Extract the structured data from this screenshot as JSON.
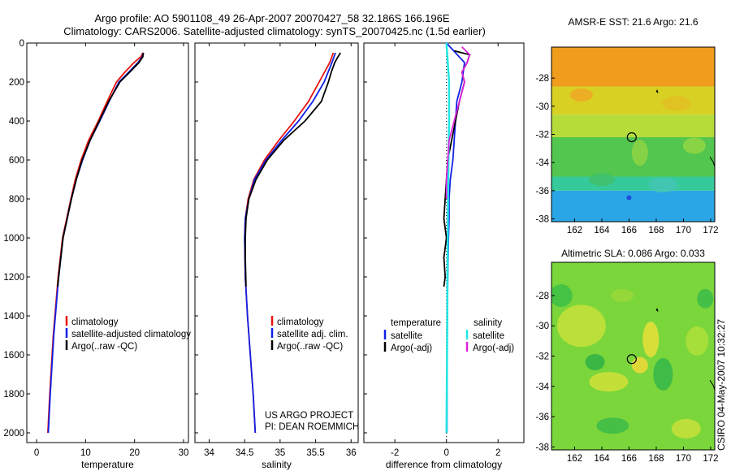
{
  "title": {
    "line1": "Argo profile: AO 5901108_49 26-Apr-2007 20070427_58 32.186S 166.196E",
    "line2": "Climatology: CARS2006. Satellite-adjusted climatology: synTS_20070425.nc (1.5d earlier)"
  },
  "colors": {
    "climatology": "#e8130c",
    "satellite": "#1020e8",
    "argo": "#000000",
    "salinity_satellite": "#22e6e6",
    "salinity_argo": "#dd22dd"
  },
  "chart_data": [
    {
      "type": "line",
      "id": "temperature",
      "xlabel": "temperature",
      "ylabel": "",
      "xlim": [
        -2,
        31
      ],
      "ylim": [
        2050,
        0
      ],
      "xticks": [
        0,
        10,
        20,
        30
      ],
      "yticks": [
        0,
        200,
        400,
        600,
        800,
        1000,
        1200,
        1400,
        1600,
        1800,
        2000
      ],
      "legend": [
        "climatology",
        "satellite-adjusted climatology",
        "Argo(..raw -QC)"
      ],
      "legend_placement": "lower-right",
      "series": [
        {
          "name": "climatology",
          "depth": [
            50,
            70,
            100,
            150,
            200,
            300,
            400,
            500,
            600,
            700,
            800,
            1000,
            1200,
            1500,
            1800,
            2000
          ],
          "values": [
            21.7,
            21.3,
            19.9,
            18.0,
            16.3,
            14.4,
            12.6,
            10.6,
            9.1,
            7.9,
            7.0,
            5.3,
            4.4,
            3.4,
            2.7,
            2.3
          ]
        },
        {
          "name": "satellite-adjusted climatology",
          "depth": [
            50,
            70,
            100,
            150,
            200,
            300,
            400,
            500,
            600,
            700,
            800,
            1000,
            1200,
            1500,
            1800,
            2000
          ],
          "values": [
            21.8,
            21.6,
            20.7,
            18.8,
            16.8,
            14.8,
            12.9,
            10.9,
            9.4,
            8.1,
            7.1,
            5.4,
            4.5,
            3.5,
            2.8,
            2.4
          ]
        },
        {
          "name": "Argo(..raw -QC)",
          "depth": [
            50,
            70,
            100,
            150,
            200,
            300,
            400,
            500,
            600,
            700,
            800,
            1000,
            1200,
            1250
          ],
          "values": [
            21.8,
            21.7,
            20.9,
            19.0,
            17.0,
            14.7,
            12.8,
            10.9,
            9.3,
            8.1,
            7.1,
            5.4,
            4.5,
            4.3
          ]
        }
      ]
    },
    {
      "type": "line",
      "id": "salinity",
      "xlabel": "salinity",
      "ylabel": "",
      "xlim": [
        33.8,
        36.1
      ],
      "ylim": [
        2050,
        0
      ],
      "xticks": [
        34,
        34.5,
        35,
        35.5,
        36
      ],
      "legend": [
        "climatology",
        "satellite adj. clim.",
        "Argo(..raw -QC)"
      ],
      "legend_placement": "lower-right",
      "series": [
        {
          "name": "climatology",
          "depth": [
            50,
            100,
            200,
            300,
            400,
            500,
            600,
            700,
            800,
            900,
            1000,
            1200,
            1400,
            1600,
            1800,
            2000
          ],
          "values": [
            35.75,
            35.7,
            35.55,
            35.4,
            35.2,
            34.98,
            34.78,
            34.63,
            34.55,
            34.51,
            34.5,
            34.51,
            34.54,
            34.58,
            34.62,
            34.65
          ]
        },
        {
          "name": "satellite adj. clim.",
          "depth": [
            50,
            100,
            200,
            300,
            400,
            500,
            600,
            700,
            800,
            900,
            1000,
            1200,
            1400,
            1600,
            1800,
            2000
          ],
          "values": [
            35.78,
            35.73,
            35.62,
            35.46,
            35.26,
            35.02,
            34.8,
            34.64,
            34.56,
            34.51,
            34.5,
            34.51,
            34.54,
            34.58,
            34.62,
            34.65
          ]
        },
        {
          "name": "Argo(..raw -QC)",
          "depth": [
            50,
            80,
            100,
            150,
            200,
            300,
            400,
            500,
            600,
            700,
            800,
            900,
            1000,
            1100,
            1250
          ],
          "values": [
            35.85,
            35.8,
            35.77,
            35.72,
            35.68,
            35.58,
            35.35,
            35.05,
            34.82,
            34.66,
            34.56,
            34.52,
            34.51,
            34.51,
            34.52
          ]
        }
      ],
      "annotation": [
        "US ARGO PROJECT",
        "PI: DEAN ROEMMICH"
      ]
    },
    {
      "type": "line",
      "id": "difference",
      "xlabel": "difference from climatology",
      "ylabel": "",
      "xlim": [
        -3.2,
        3
      ],
      "ylim": [
        2050,
        0
      ],
      "xticks": [
        -2,
        0,
        2
      ],
      "legend_groups": [
        {
          "heading": "temperature",
          "entries": [
            "satellite",
            "Argo(-adj)"
          ]
        },
        {
          "heading": "salinity",
          "entries": [
            "satellite",
            "Argo(-adj)"
          ]
        }
      ],
      "legend_placement": "lower-center",
      "series": [
        {
          "name": "temperature satellite",
          "depth": [
            0,
            100,
            200,
            300,
            400,
            500,
            600,
            700,
            800,
            900,
            1000,
            1200,
            1500,
            2000
          ],
          "values": [
            0.0,
            0.7,
            0.6,
            0.4,
            0.35,
            0.3,
            0.25,
            0.15,
            0.1,
            0.1,
            0.08,
            0.05,
            0.03,
            0.02
          ]
        },
        {
          "name": "temperature Argo(-adj)",
          "depth": [
            40,
            60,
            100,
            150,
            200,
            300,
            400,
            500,
            600,
            700,
            800,
            900,
            1000,
            1100,
            1200,
            1250
          ],
          "values": [
            0.3,
            0.9,
            0.8,
            0.6,
            0.7,
            0.5,
            0.35,
            0.2,
            0.05,
            0.0,
            -0.05,
            -0.1,
            0.0,
            -0.1,
            -0.05,
            -0.1
          ]
        },
        {
          "name": "salinity satellite",
          "depth": [
            0,
            200,
            400,
            600,
            800,
            1000,
            1200,
            1500,
            2000
          ],
          "values": [
            0.0,
            0.1,
            0.1,
            0.08,
            0.06,
            0.05,
            0.04,
            0.03,
            0.0
          ]
        },
        {
          "name": "salinity Argo(-adj)",
          "depth": [
            20,
            60,
            100,
            150,
            200,
            300,
            400,
            500,
            600,
            700,
            800
          ],
          "values": [
            0.6,
            0.9,
            0.8,
            0.6,
            0.7,
            0.5,
            0.3,
            0.1,
            0.05,
            0.0,
            0.0
          ]
        }
      ]
    },
    {
      "type": "heatmap",
      "id": "sst-map",
      "title": "AMSR-E SST: 21.6 Argo: 21.6",
      "xlim": [
        160.3,
        172.3
      ],
      "ylim": [
        -38.2,
        -25.8
      ],
      "xticks": [
        162,
        164,
        166,
        168,
        170,
        172
      ],
      "yticks": [
        -28,
        -30,
        -32,
        -34,
        -36,
        -38
      ],
      "marker": {
        "lon": 166.2,
        "lat": -32.2
      },
      "bands": [
        {
          "lat_min": -28.6,
          "lat_max": -25.8,
          "color": "#f09c1c"
        },
        {
          "lat_min": -30.6,
          "lat_max": -28.6,
          "color": "#d8d023"
        },
        {
          "lat_min": -32.2,
          "lat_max": -30.6,
          "color": "#b6dc3a"
        },
        {
          "lat_min": -35.0,
          "lat_max": -32.2,
          "color": "#52c64e"
        },
        {
          "lat_min": -36.0,
          "lat_max": -35.0,
          "color": "#36c99a"
        },
        {
          "lat_min": -38.2,
          "lat_max": -36.0,
          "color": "#2aa6e6"
        }
      ]
    },
    {
      "type": "heatmap",
      "id": "sla-map",
      "title": "Altimetric SLA: 0.086 Argo: 0.033",
      "xlim": [
        160.3,
        172.3
      ],
      "ylim": [
        -38.2,
        -25.8
      ],
      "xticks": [
        162,
        164,
        166,
        168,
        170,
        172
      ],
      "yticks": [
        -28,
        -30,
        -32,
        -34,
        -36,
        -38
      ],
      "marker": {
        "lon": 166.2,
        "lat": -32.2
      },
      "base_color": "#7ad63a"
    }
  ],
  "footer": "CSIRO 04-May-2007 10:32:27"
}
